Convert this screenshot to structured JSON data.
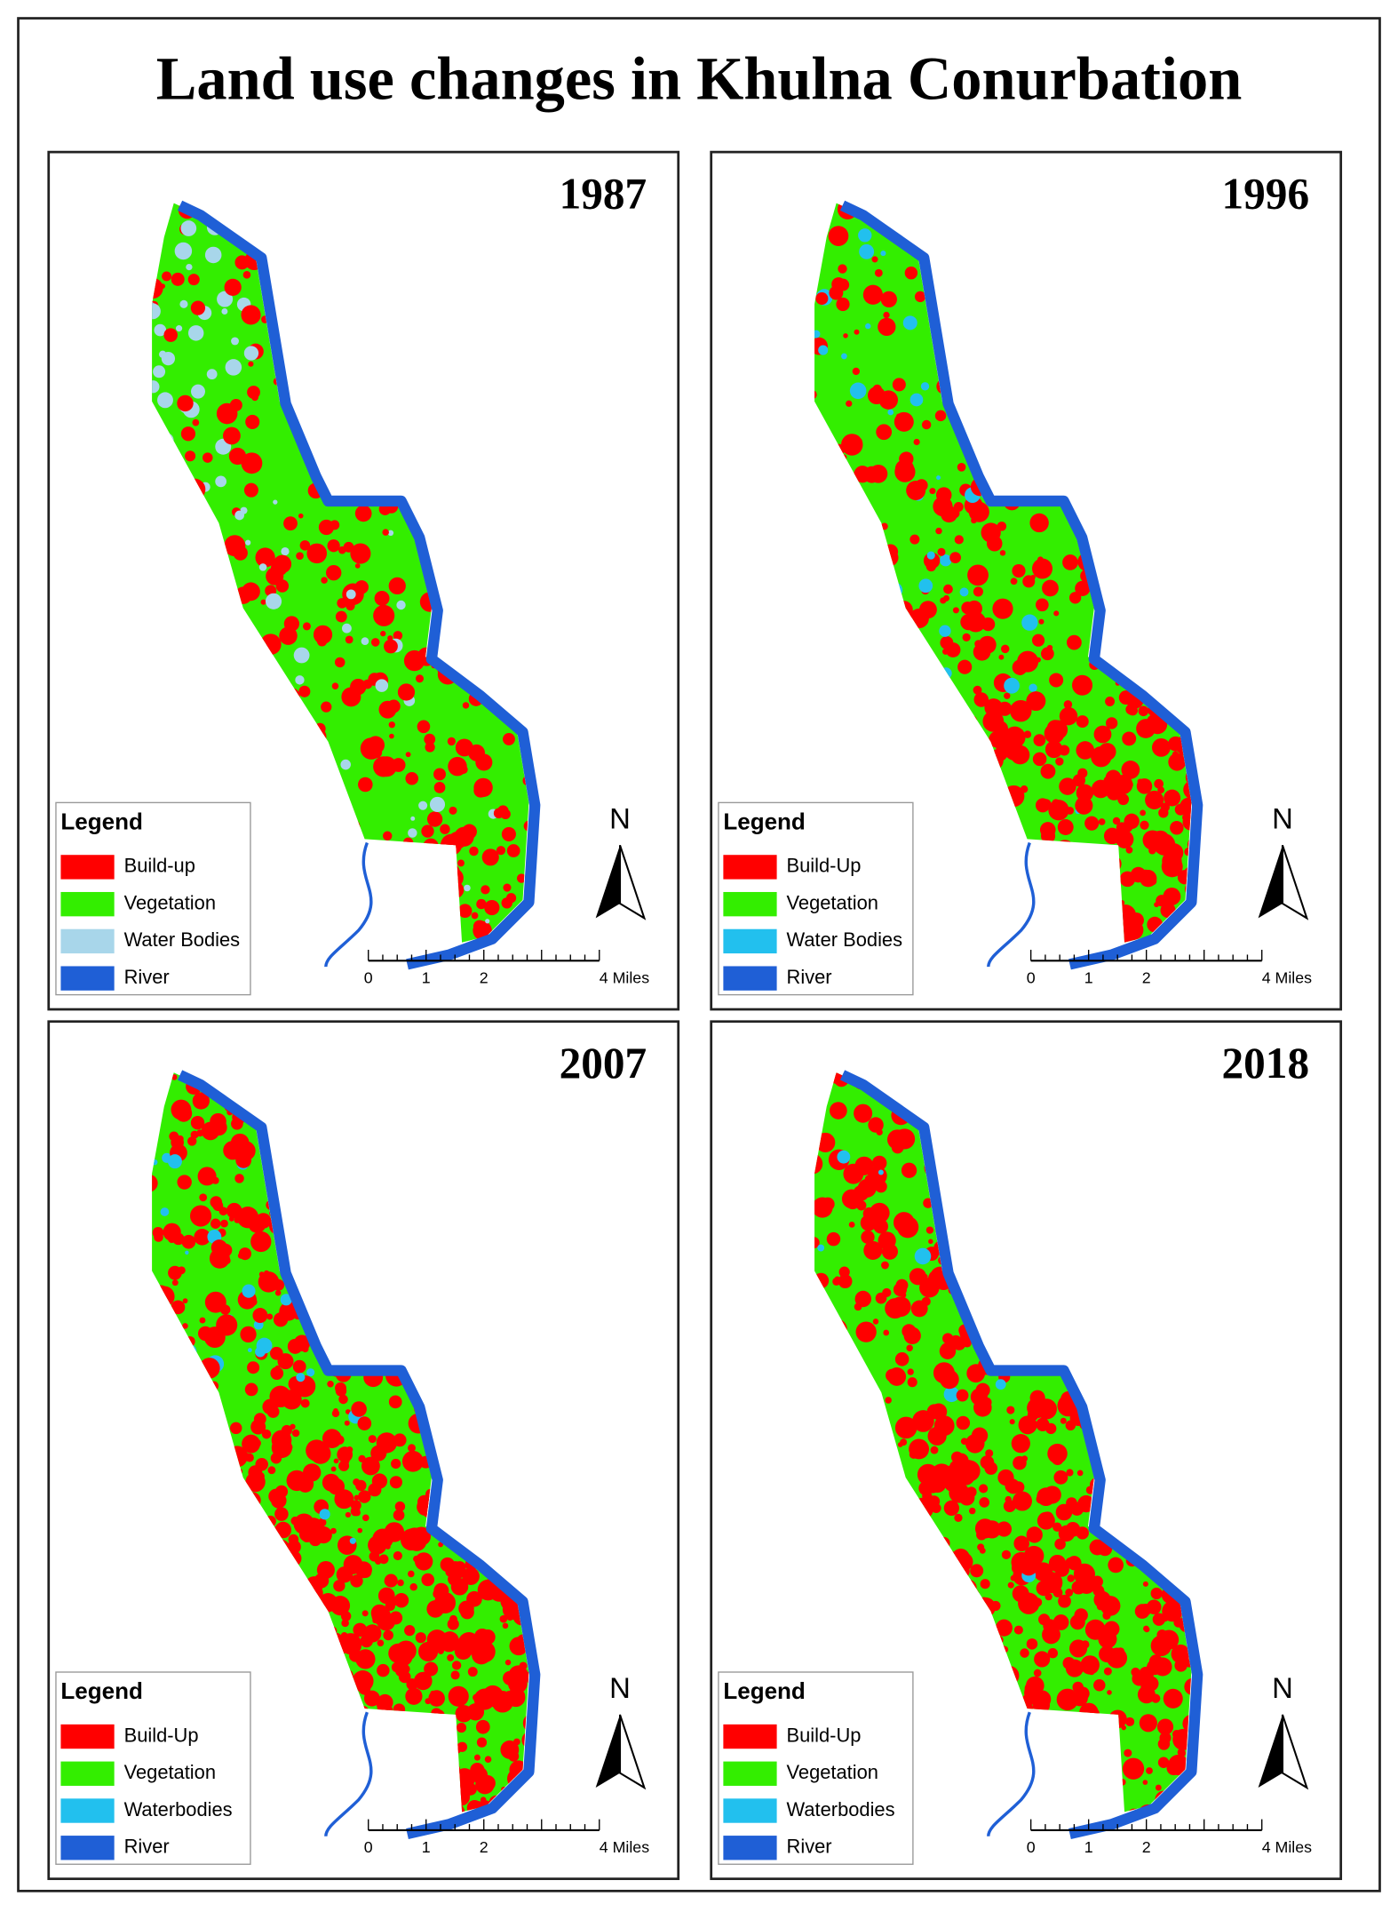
{
  "title": "Land use changes in Khulna Conurbation",
  "panels": [
    {
      "year": "1987",
      "north": "N",
      "scale": [
        "0",
        "1",
        "2",
        "4 Miles"
      ],
      "legend": {
        "title": "Legend",
        "items": [
          {
            "label": "Build-up",
            "color": "#ff0000"
          },
          {
            "label": "Vegetation",
            "color": "#33ee00"
          },
          {
            "label": "Water Bodies",
            "color": "#a8d6ea"
          },
          {
            "label": "River",
            "color": "#1f5fd6"
          }
        ]
      }
    },
    {
      "year": "1996",
      "north": "N",
      "scale": [
        "0",
        "1",
        "2",
        "4 Miles"
      ],
      "legend": {
        "title": "Legend",
        "items": [
          {
            "label": "Build-Up",
            "color": "#ff0000"
          },
          {
            "label": "Vegetation",
            "color": "#33ee00"
          },
          {
            "label": "Water Bodies",
            "color": "#22c0ee"
          },
          {
            "label": "River",
            "color": "#1f5fd6"
          }
        ]
      }
    },
    {
      "year": "2007",
      "north": "N",
      "scale": [
        "0",
        "1",
        "2",
        "4 Miles"
      ],
      "legend": {
        "title": "Legend",
        "items": [
          {
            "label": "Build-Up",
            "color": "#ff0000"
          },
          {
            "label": "Vegetation",
            "color": "#33ee00"
          },
          {
            "label": "Waterbodies",
            "color": "#22c0ee"
          },
          {
            "label": "River",
            "color": "#1f5fd6"
          }
        ]
      }
    },
    {
      "year": "2018",
      "north": "N",
      "scale": [
        "0",
        "1",
        "2",
        "4 Miles"
      ],
      "legend": {
        "title": "Legend",
        "items": [
          {
            "label": "Build-Up",
            "color": "#ff0000"
          },
          {
            "label": "Vegetation",
            "color": "#33ee00"
          },
          {
            "label": "Waterbodies",
            "color": "#22c0ee"
          },
          {
            "label": "River",
            "color": "#1f5fd6"
          }
        ]
      }
    }
  ]
}
